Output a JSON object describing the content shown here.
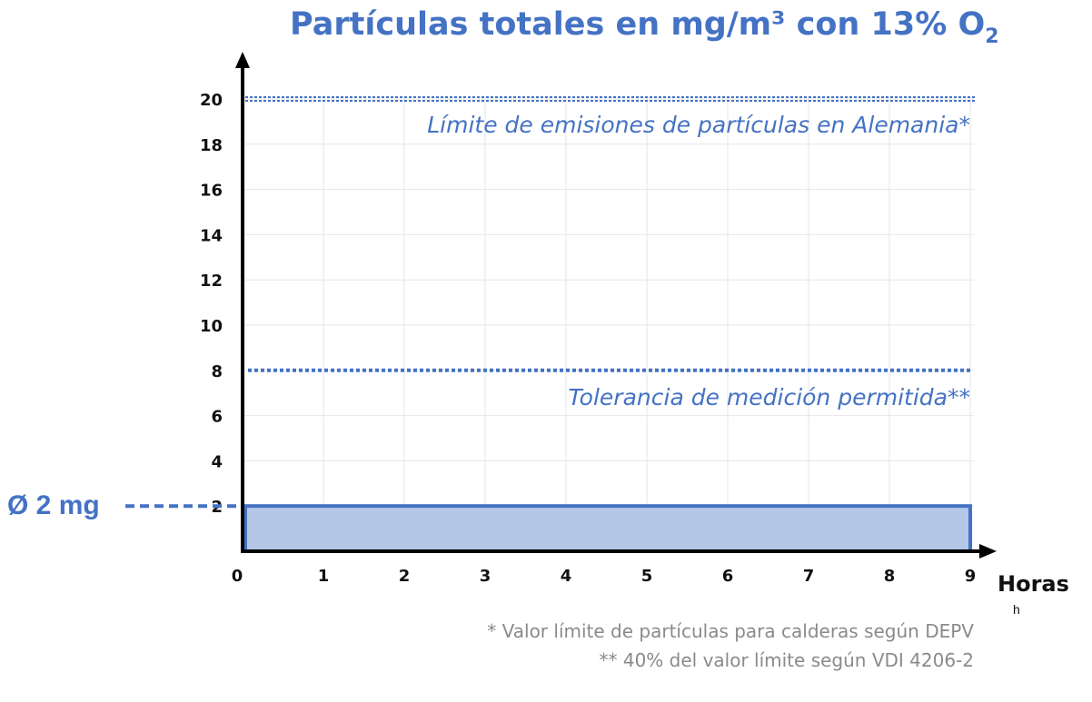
{
  "chart_data": {
    "type": "area",
    "title": "Partículas totales en mg/m³ con 13% O",
    "title_subscript": "2",
    "xlabel": "Horas",
    "x_unit": "h",
    "ylabel": "",
    "x_ticks": [
      0,
      1,
      2,
      3,
      4,
      5,
      6,
      7,
      8,
      9
    ],
    "y_ticks": [
      2,
      4,
      6,
      8,
      10,
      12,
      14,
      16,
      18,
      20
    ],
    "xlim": [
      0,
      9
    ],
    "ylim": [
      0,
      20
    ],
    "grid": true,
    "series": [
      {
        "values_x": [
          0,
          9
        ],
        "values_y": [
          2,
          2
        ],
        "color": "#4472C4",
        "fill": "#B4C7E7"
      }
    ],
    "reference_lines": [
      {
        "y": 20,
        "label": "Límite de emisiones de partículas en Alemania*",
        "style": "dotted-double",
        "color": "#4472C4"
      },
      {
        "y": 8,
        "label": "Tolerancia de medición permitida**",
        "style": "dotted",
        "color": "#4472C4"
      }
    ],
    "average_marker": {
      "y": 2,
      "label": "Ø 2 mg",
      "color": "#4472C4"
    },
    "footnotes": [
      "*  Valor límite de partículas para calderas según DEPV",
      "**  40% del valor límite según VDI 4206-2"
    ]
  }
}
